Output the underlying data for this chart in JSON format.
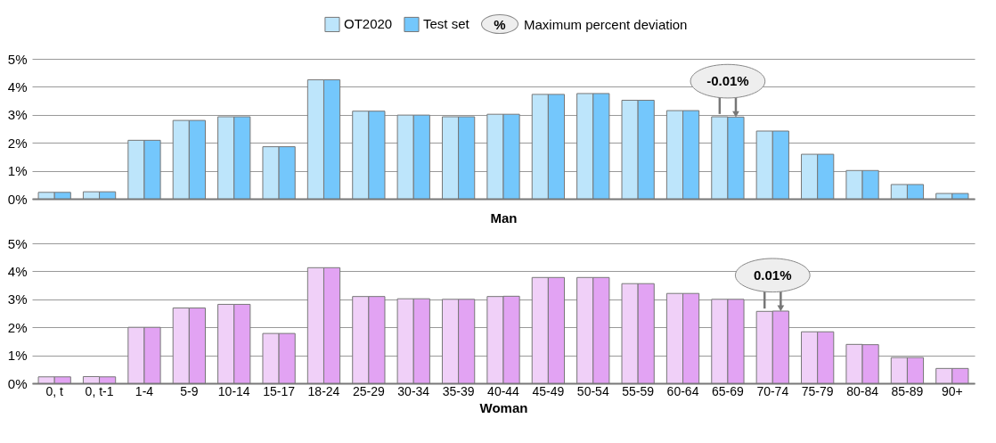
{
  "chart_data": [
    {
      "type": "bar",
      "xlabel": "Man",
      "categories": [
        "0, t",
        "0, t-1",
        "1-4",
        "5-9",
        "10-14",
        "15-17",
        "18-24",
        "25-29",
        "30-34",
        "35-39",
        "40-44",
        "45-49",
        "50-54",
        "55-59",
        "60-64",
        "65-69",
        "70-74",
        "75-79",
        "80-84",
        "85-89",
        "90+"
      ],
      "series": [
        {
          "name": "OT2020",
          "color": "#bde5fb",
          "values": [
            0.23,
            0.25,
            2.09,
            2.8,
            2.93,
            1.86,
            4.25,
            3.13,
            2.99,
            2.93,
            3.02,
            3.73,
            3.76,
            3.52,
            3.15,
            2.93,
            2.42,
            1.59,
            1.01,
            0.51,
            0.19
          ]
        },
        {
          "name": "Test set",
          "color": "#74c7fc",
          "values": [
            0.23,
            0.25,
            2.09,
            2.8,
            2.93,
            1.86,
            4.25,
            3.13,
            2.99,
            2.93,
            3.02,
            3.73,
            3.76,
            3.52,
            3.15,
            2.92,
            2.42,
            1.59,
            1.01,
            0.51,
            0.19
          ]
        }
      ],
      "ylim": [
        0,
        5
      ],
      "yticks": [
        {
          "value": 0,
          "label": "0%"
        },
        {
          "value": 1,
          "label": "1%"
        },
        {
          "value": 2,
          "label": "2%"
        },
        {
          "value": 3,
          "label": "3%"
        },
        {
          "value": 4,
          "label": "4%"
        },
        {
          "value": 5,
          "label": "5%"
        }
      ],
      "grid": "y",
      "legend": "top",
      "tick_labels": "y",
      "annotations": [
        "%",
        "Maximum percent deviation",
        {
          "text": "-0.01%",
          "x": "65-69",
          "y": 2.92
        }
      ]
    },
    {
      "type": "bar",
      "xlabel": "Woman",
      "categories": [
        "0, t",
        "0, t-1",
        "1-4",
        "5-9",
        "10-14",
        "15-17",
        "18-24",
        "25-29",
        "30-34",
        "35-39",
        "40-44",
        "45-49",
        "50-54",
        "55-59",
        "60-64",
        "65-69",
        "70-74",
        "75-79",
        "80-84",
        "85-89",
        "90+"
      ],
      "series": [
        {
          "color": "#f0d0f8",
          "values": [
            0.23,
            0.24,
            2.0,
            2.69,
            2.82,
            1.78,
            4.13,
            3.1,
            3.02,
            3.0,
            3.1,
            3.78,
            3.78,
            3.56,
            3.21,
            3.0,
            2.57,
            1.84,
            1.39,
            0.92,
            0.53
          ]
        },
        {
          "color": "#e2a3f3",
          "values": [
            0.23,
            0.23,
            2.0,
            2.69,
            2.82,
            1.78,
            4.13,
            3.1,
            3.02,
            3.0,
            3.11,
            3.78,
            3.78,
            3.56,
            3.21,
            3.0,
            2.58,
            1.84,
            1.38,
            0.92,
            0.53
          ]
        }
      ],
      "ylim": [
        0,
        5
      ],
      "yticks": [
        {
          "value": 0,
          "label": "0%"
        },
        {
          "value": 1,
          "label": "1%"
        },
        {
          "value": 2,
          "label": "2%"
        },
        {
          "value": 3,
          "label": "3%"
        },
        {
          "value": 4,
          "label": "4%"
        },
        {
          "value": 5,
          "label": "5%"
        }
      ],
      "grid": "y",
      "annotations": [
        {
          "text": "0.01%",
          "x": "70-74",
          "y": 2.58
        }
      ]
    }
  ]
}
